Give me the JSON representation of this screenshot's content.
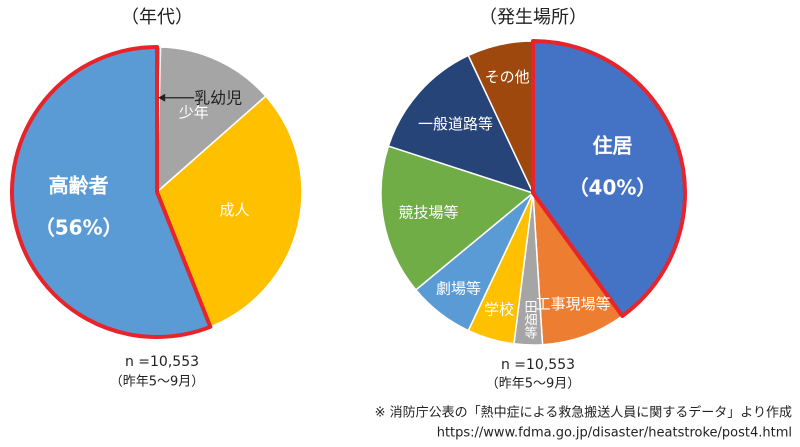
{
  "chart_data": [
    {
      "type": "pie",
      "title": "（年代）",
      "categories": [
        "乳幼児",
        "少年",
        "成人",
        "高齢者"
      ],
      "values": [
        0.4,
        13.1,
        30.5,
        56
      ],
      "value_labels": [
        null,
        null,
        null,
        "（56%）"
      ],
      "colors": [
        "#ED7D31",
        "#A5A5A5",
        "#FFC000",
        "#5B9BD5"
      ],
      "highlight": 3,
      "highlight_color": "#E8242B",
      "annotations": [
        "n =10,553",
        "（昨年5～9月）"
      ]
    },
    {
      "type": "pie",
      "title": "（発生場所）",
      "categories": [
        "住居",
        "工事現場等",
        "田畑等",
        "学校",
        "劇場等",
        "競技場等",
        "一般道路等",
        "その他"
      ],
      "values": [
        40,
        9,
        3,
        5,
        7,
        16,
        13,
        7
      ],
      "value_labels": [
        "（40%）",
        null,
        null,
        null,
        null,
        null,
        null,
        null
      ],
      "colors": [
        "#4472C4",
        "#ED7D31",
        "#A5A5A5",
        "#FFC000",
        "#5B9BD5",
        "#70AD47",
        "#264478",
        "#9E480E"
      ],
      "highlight": 0,
      "highlight_color": "#E8242B",
      "annotations": [
        "n =10,553",
        "（昨年5～9月）"
      ]
    }
  ],
  "source": [
    "※ 消防庁公表の「熱中症による救急搬送人員に関するデータ」より作成",
    "https://www.fdma.go.jp/disaster/heatstroke/post4.html"
  ]
}
